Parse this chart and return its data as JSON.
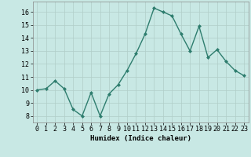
{
  "x": [
    0,
    1,
    2,
    3,
    4,
    5,
    6,
    7,
    8,
    9,
    10,
    11,
    12,
    13,
    14,
    15,
    16,
    17,
    18,
    19,
    20,
    21,
    22,
    23
  ],
  "y": [
    10.0,
    10.1,
    10.7,
    10.1,
    8.5,
    8.0,
    9.8,
    8.0,
    9.7,
    10.4,
    11.5,
    12.8,
    14.3,
    16.3,
    16.0,
    15.7,
    14.3,
    13.0,
    14.9,
    12.5,
    13.1,
    12.2,
    11.5,
    11.1
  ],
  "line_color": "#2e7d6e",
  "marker_color": "#2e7d6e",
  "bg_color": "#c8e8e4",
  "grid_color": "#b0cec8",
  "xlabel": "Humidex (Indice chaleur)",
  "xlim": [
    -0.5,
    23.5
  ],
  "ylim": [
    7.5,
    16.8
  ],
  "yticks": [
    8,
    9,
    10,
    11,
    12,
    13,
    14,
    15,
    16
  ],
  "xticks": [
    0,
    1,
    2,
    3,
    4,
    5,
    6,
    7,
    8,
    9,
    10,
    11,
    12,
    13,
    14,
    15,
    16,
    17,
    18,
    19,
    20,
    21,
    22,
    23
  ],
  "xlabel_fontsize": 6.5,
  "tick_fontsize": 6.0,
  "line_width": 1.0,
  "marker_size": 2.0
}
